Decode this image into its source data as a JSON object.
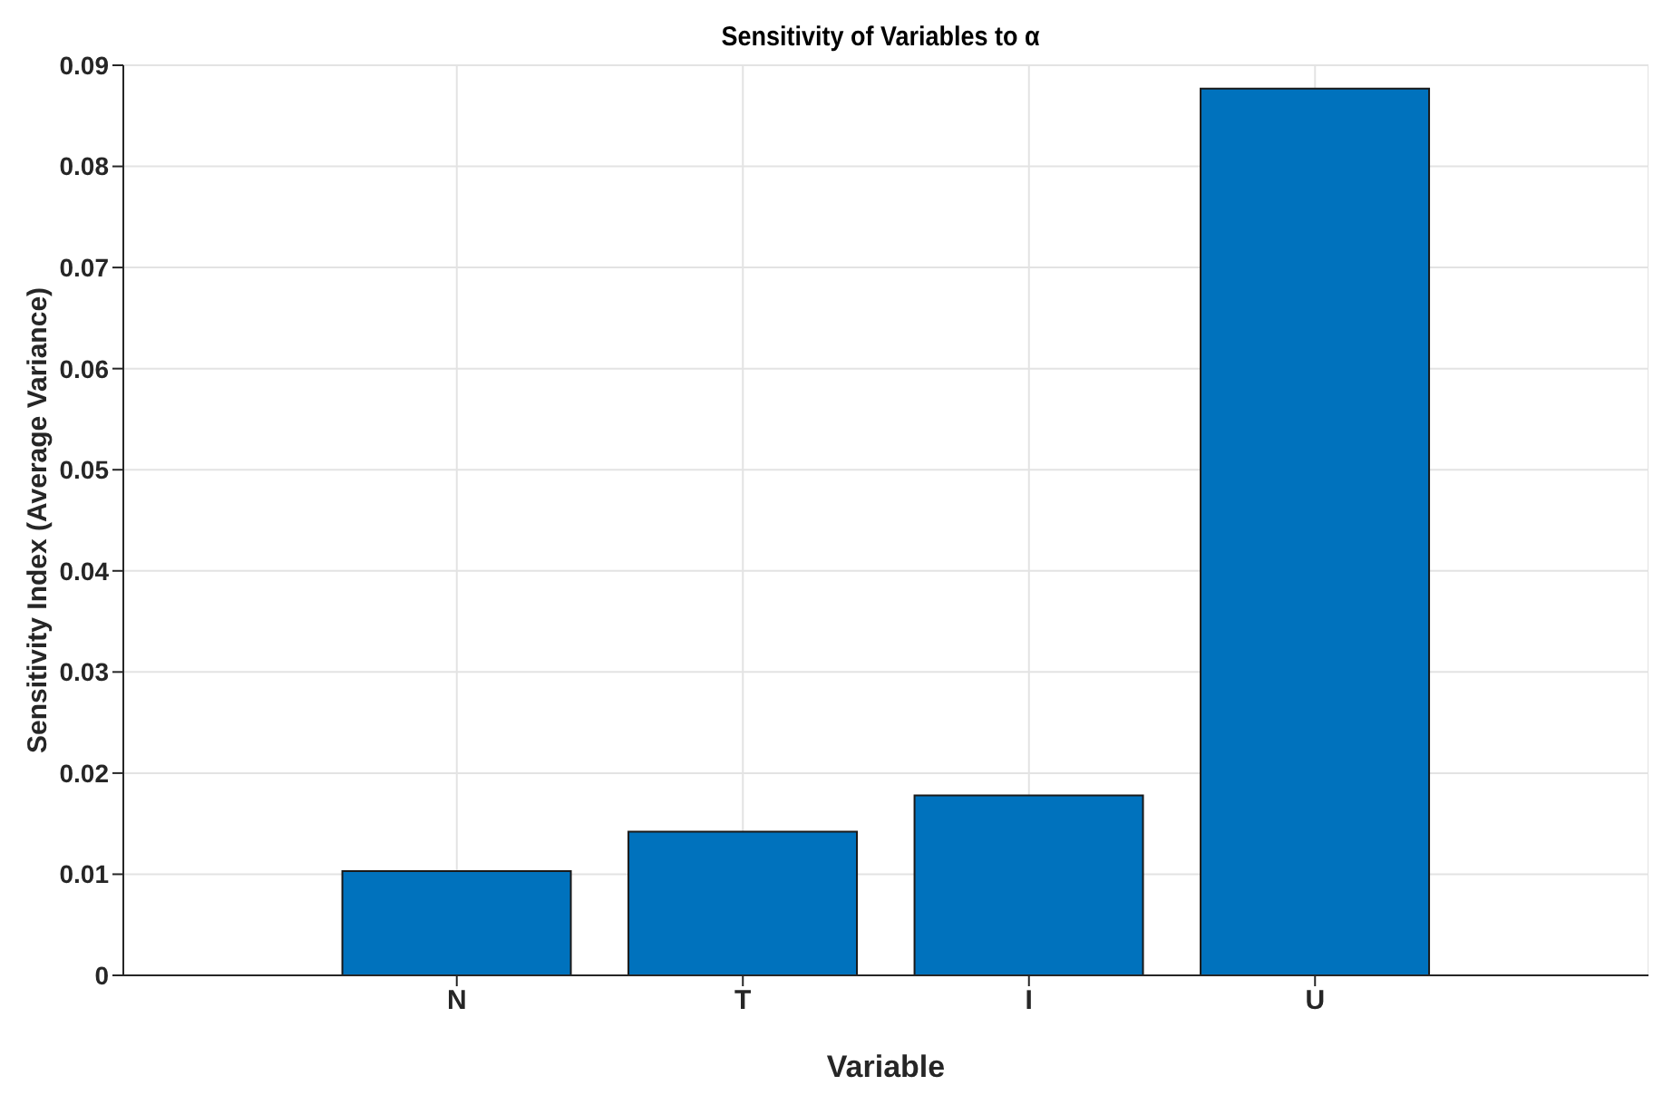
{
  "chart_data": {
    "type": "bar",
    "title": "Sensitivity of Variables to α",
    "xlabel": "Variable",
    "ylabel": "Sensitivity Index (Average Variance)",
    "categories": [
      "N",
      "T",
      "I",
      "U"
    ],
    "series": [
      {
        "color": "#0072bd",
        "values": [
          0.0103,
          0.0142,
          0.0178,
          0.0877
        ]
      }
    ],
    "ylim": [
      0,
      0.09
    ],
    "yticks": [
      0,
      0.01,
      0.02,
      0.03,
      0.04,
      0.05,
      0.06,
      0.07,
      0.08,
      0.09
    ],
    "grid": true
  }
}
